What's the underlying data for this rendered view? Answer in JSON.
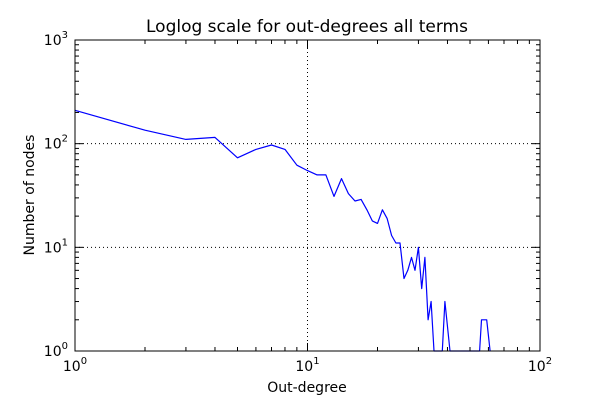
{
  "chart_data": {
    "type": "line",
    "title": "Loglog scale for out-degrees all terms",
    "xlabel": "Out-degree",
    "ylabel": "Number of nodes",
    "xscale": "log",
    "yscale": "log",
    "xlim": [
      1,
      100
    ],
    "ylim": [
      1,
      1000
    ],
    "grid": "dotted",
    "x_ticks": [
      {
        "base": "10",
        "exp": "0",
        "value": 1
      },
      {
        "base": "10",
        "exp": "1",
        "value": 10
      },
      {
        "base": "10",
        "exp": "2",
        "value": 100
      }
    ],
    "y_ticks": [
      {
        "base": "10",
        "exp": "0",
        "value": 1
      },
      {
        "base": "10",
        "exp": "1",
        "value": 10
      },
      {
        "base": "10",
        "exp": "2",
        "value": 100
      },
      {
        "base": "10",
        "exp": "3",
        "value": 1000
      }
    ],
    "series_color": "#0000ff",
    "series": [
      {
        "x": [
          1,
          2,
          3,
          4,
          5,
          6,
          7,
          8,
          9,
          10,
          11,
          12,
          13,
          14,
          15,
          16,
          17,
          18,
          19,
          20,
          21,
          22,
          23,
          24,
          25,
          26,
          27,
          28,
          29,
          30,
          31,
          32,
          33,
          34,
          35,
          38,
          39,
          41,
          44,
          45,
          52,
          55,
          56,
          59,
          61
        ],
        "y": [
          210,
          135,
          110,
          115,
          73,
          88,
          97,
          88,
          62,
          55,
          50,
          50,
          31,
          46,
          33,
          28,
          29,
          23,
          18,
          17,
          23,
          19,
          13,
          11,
          11,
          5,
          6,
          8,
          6,
          10,
          4,
          8,
          2,
          3,
          1,
          1,
          3,
          1,
          1,
          1,
          1,
          1,
          2,
          2,
          1
        ]
      }
    ]
  }
}
